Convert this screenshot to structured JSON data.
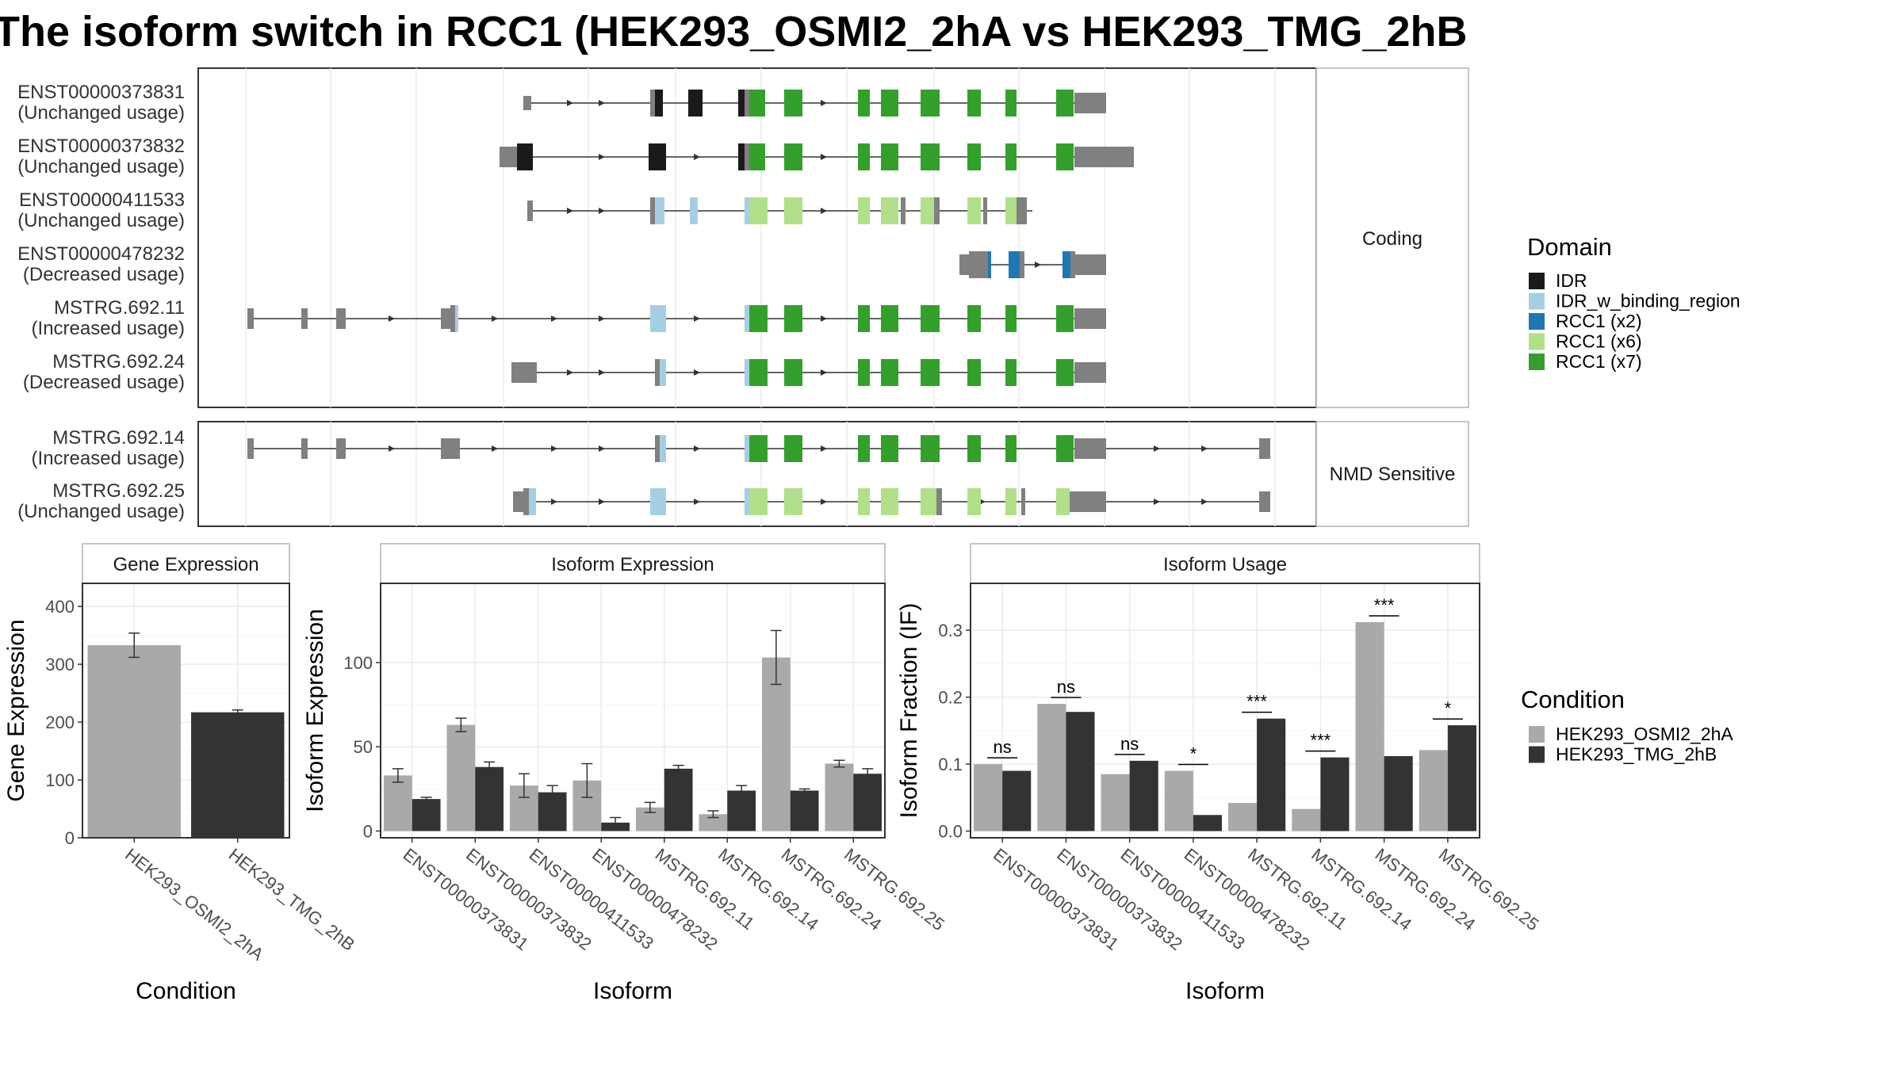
{
  "title": "The isoform switch in RCC1 (HEK293_OSMI2_2hA vs HEK293_TMG_2hB",
  "domain_colors": {
    "IDR": "#1a1a1a",
    "IDR_w_binding_region": "#a6cee3",
    "RCC1 (x2)": "#1f78b4",
    "RCC1 (x6)": "#b2df8a",
    "RCC1 (x7)": "#33a02c",
    "exon": "#808080"
  },
  "condition_colors": {
    "HEK293_OSMI2_2hA": "#a9a9a9",
    "HEK293_TMG_2hB": "#333333"
  },
  "transcripts": {
    "coding_label": "Coding",
    "nmd_label": "NMD Sensitive",
    "coding": [
      {
        "id": "ENST00000373831",
        "usage": "(Unchanged usage)"
      },
      {
        "id": "ENST00000373832",
        "usage": "(Unchanged usage)"
      },
      {
        "id": "ENST00000411533",
        "usage": "(Unchanged usage)"
      },
      {
        "id": "ENST00000478232",
        "usage": "(Decreased usage)"
      },
      {
        "id": "MSTRG.692.11",
        "usage": "(Increased usage)"
      },
      {
        "id": "MSTRG.692.24",
        "usage": "(Decreased usage)"
      }
    ],
    "nmd": [
      {
        "id": "MSTRG.692.14",
        "usage": "(Increased usage)"
      },
      {
        "id": "MSTRG.692.25",
        "usage": "(Unchanged usage)"
      }
    ]
  },
  "legend_domain": {
    "title": "Domain",
    "items": [
      {
        "label": "IDR",
        "color": "#1a1a1a"
      },
      {
        "label": "IDR_w_binding_region",
        "color": "#a6cee3"
      },
      {
        "label": "RCC1 (x2)",
        "color": "#1f78b4"
      },
      {
        "label": "RCC1 (x6)",
        "color": "#b2df8a"
      },
      {
        "label": "RCC1 (x7)",
        "color": "#33a02c"
      }
    ]
  },
  "legend_condition": {
    "title": "Condition",
    "items": [
      {
        "label": "HEK293_OSMI2_2hA",
        "color": "#a9a9a9"
      },
      {
        "label": "HEK293_TMG_2hB",
        "color": "#333333"
      }
    ]
  },
  "chart_data": [
    {
      "type": "bar",
      "strip": "Gene Expression",
      "xlabel": "Condition",
      "ylabel": "Gene Expression",
      "categories": [
        "HEK293_OSMI2_2hA",
        "HEK293_TMG_2hB"
      ],
      "values": [
        333,
        217
      ],
      "errors": [
        [
          312,
          354
        ],
        [
          213,
          221
        ]
      ],
      "ylim": [
        0,
        440
      ],
      "yticks": [
        0,
        100,
        200,
        300,
        400
      ]
    },
    {
      "type": "bar",
      "strip": "Isoform Expression",
      "xlabel": "Isoform",
      "ylabel": "Isoform Expression",
      "categories": [
        "ENST00000373831",
        "ENST00000373832",
        "ENST00000411533",
        "ENST00000478232",
        "MSTRG.692.11",
        "MSTRG.692.14",
        "MSTRG.692.24",
        "MSTRG.692.25"
      ],
      "series": [
        {
          "name": "HEK293_OSMI2_2hA",
          "values": [
            33,
            63,
            27,
            30,
            14,
            10,
            103,
            40
          ],
          "errors": [
            [
              29,
              37
            ],
            [
              59,
              67
            ],
            [
              20,
              34
            ],
            [
              20,
              40
            ],
            [
              11,
              17
            ],
            [
              8,
              12
            ],
            [
              87,
              119
            ],
            [
              38,
              42
            ]
          ]
        },
        {
          "name": "HEK293_TMG_2hB",
          "values": [
            19,
            38,
            23,
            5,
            37,
            24,
            24,
            34
          ],
          "errors": [
            [
              18,
              20
            ],
            [
              35,
              41
            ],
            [
              19,
              27
            ],
            [
              2,
              8
            ],
            [
              35,
              39
            ],
            [
              21,
              27
            ],
            [
              23,
              25
            ],
            [
              31,
              37
            ]
          ]
        }
      ],
      "ylim": [
        -4,
        147
      ],
      "yticks": [
        0,
        50,
        100
      ]
    },
    {
      "type": "bar",
      "strip": "Isoform Usage",
      "xlabel": "Isoform",
      "ylabel": "Isoform Fraction (IF)",
      "categories": [
        "ENST00000373831",
        "ENST00000373832",
        "ENST00000411533",
        "ENST00000478232",
        "MSTRG.692.11",
        "MSTRG.692.14",
        "MSTRG.692.24",
        "MSTRG.692.25"
      ],
      "series": [
        {
          "name": "HEK293_OSMI2_2hA",
          "values": [
            0.1,
            0.19,
            0.085,
            0.09,
            0.042,
            0.033,
            0.312,
            0.121
          ]
        },
        {
          "name": "HEK293_TMG_2hB",
          "values": [
            0.09,
            0.178,
            0.105,
            0.024,
            0.168,
            0.11,
            0.112,
            0.158
          ]
        }
      ],
      "significance": [
        "ns",
        "ns",
        "ns",
        "*",
        "***",
        "***",
        "***",
        "*"
      ],
      "ylim": [
        -0.01,
        0.37
      ],
      "yticks": [
        0.0,
        0.1,
        0.2,
        0.3
      ],
      "ytick_labels": [
        "0.0",
        "0.1",
        "0.2",
        "0.3"
      ]
    }
  ]
}
